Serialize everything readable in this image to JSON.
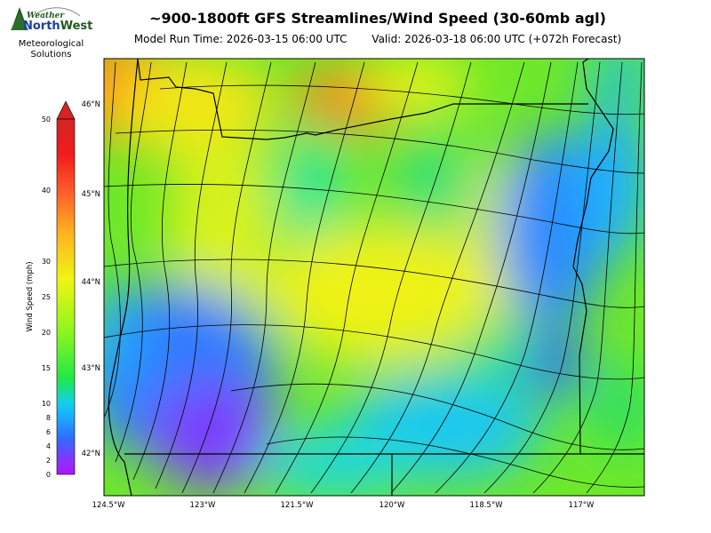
{
  "header": {
    "title": "~900-1800ft GFS Streamlines/Wind Speed (30-60mb agl)",
    "model_run": "Model Run Time: 2026-03-15 06:00 UTC",
    "valid": "Valid: 2026-03-18 06:00 UTC  (+072h Forecast)"
  },
  "logo": {
    "brand_top": "Weather",
    "brand_main_north": "North",
    "brand_main_west": "West",
    "line1": "Meteorological",
    "line2": "Solutions"
  },
  "colorbar": {
    "label": "Wind Speed (mph)",
    "ticks": [
      "0",
      "2",
      "4",
      "6",
      "8",
      "10",
      "15",
      "20",
      "25",
      "30",
      "40",
      "50"
    ],
    "colors": [
      "#b015ff",
      "#7a3cff",
      "#2f6bff",
      "#1ea0ff",
      "#12d0ee",
      "#20e848",
      "#8cf51e",
      "#f0f514",
      "#ffb21e",
      "#ff5a2a",
      "#f01c1c",
      "#d42424"
    ]
  },
  "map": {
    "lat_labels": [
      "46°N",
      "45°N",
      "44°N",
      "43°N",
      "42°N"
    ],
    "lon_labels": [
      "124.5°W",
      "123°W",
      "121.5°W",
      "120°W",
      "118.5°W",
      "117°W"
    ]
  }
}
